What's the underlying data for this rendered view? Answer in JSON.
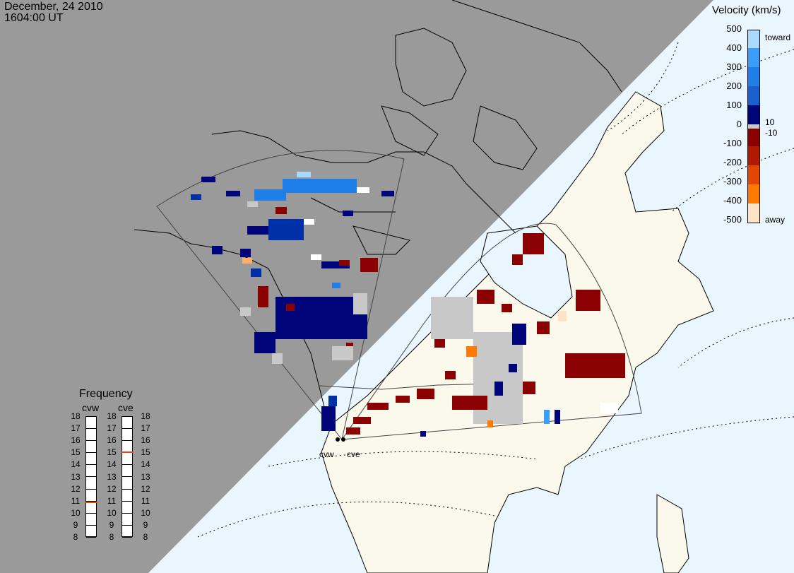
{
  "header": {
    "date": "December, 24 2010",
    "time": "1604:00 UT"
  },
  "colorbar": {
    "title": "Velocity (km/s)",
    "ticks": [
      "500",
      "400",
      "300",
      "200",
      "100",
      "0",
      "-100",
      "-200",
      "-300",
      "-400",
      "-500"
    ],
    "toward_label": "toward",
    "away_label": "away",
    "pos_threshold": "10",
    "neg_threshold": "-10",
    "colors": [
      "#ffe3c5",
      "#ffb066",
      "#ff7a00",
      "#e34600",
      "#b21a00",
      "#8b0000",
      "#c8c8c8",
      "#00067a",
      "#0030a8",
      "#1a5fd0",
      "#1e7fe8",
      "#3a9ef8",
      "#a8daff"
    ]
  },
  "frequency": {
    "title": "Frequency",
    "channels": [
      {
        "name": "cvw",
        "value_mhz": 10.9
      },
      {
        "name": "cve",
        "value_mhz": 15.1
      }
    ],
    "ticks": [
      "18",
      "17",
      "16",
      "15",
      "14",
      "13",
      "12",
      "11",
      "10",
      "9",
      "8"
    ],
    "range": [
      8,
      18
    ]
  },
  "radars": [
    {
      "name": "cvw"
    },
    {
      "name": "cve"
    }
  ],
  "map_colors": {
    "night": "#9a9a9a",
    "land": "#fbf9ec",
    "ocean": "#eaf6fd"
  }
}
